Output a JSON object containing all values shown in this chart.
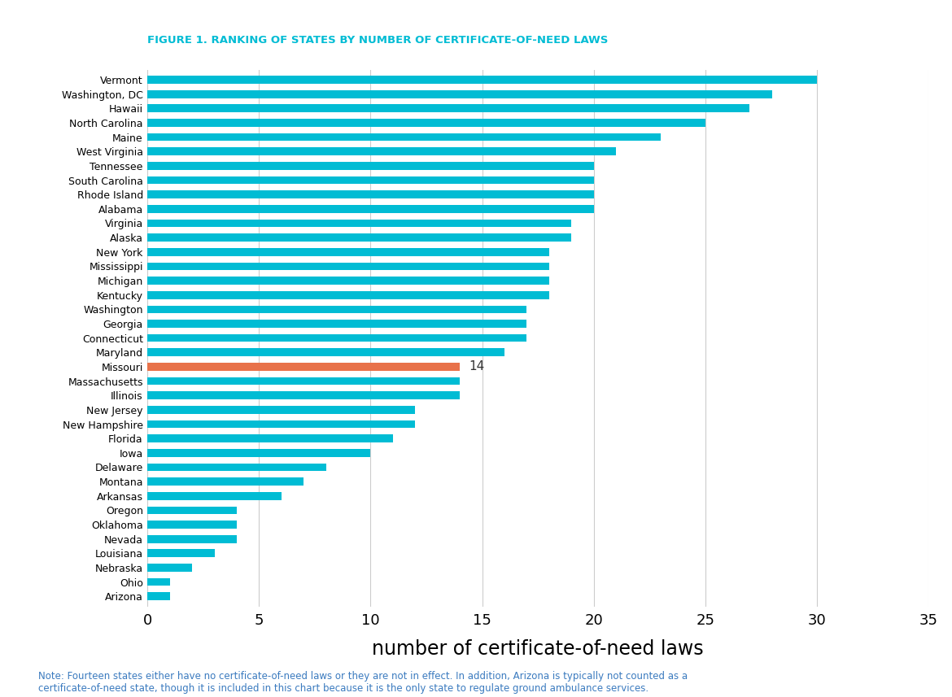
{
  "title": "FIGURE 1. RANKING OF STATES BY NUMBER OF CERTIFICATE-OF-NEED LAWS",
  "xlabel": "number of certificate-of-need laws",
  "note": "Note: Fourteen states either have no certificate-of-need laws or they are not in effect. In addition, Arizona is typically not counted as a\ncertificate-of-need state, though it is included in this chart because it is the only state to regulate ground ambulance services.",
  "states": [
    "Vermont",
    "Washington, DC",
    "Hawaii",
    "North Carolina",
    "Maine",
    "West Virginia",
    "Tennessee",
    "South Carolina",
    "Rhode Island",
    "Alabama",
    "Virginia",
    "Alaska",
    "New York",
    "Mississippi",
    "Michigan",
    "Kentucky",
    "Washington",
    "Georgia",
    "Connecticut",
    "Maryland",
    "Missouri",
    "Massachusetts",
    "Illinois",
    "New Jersey",
    "New Hampshire",
    "Florida",
    "Iowa",
    "Delaware",
    "Montana",
    "Arkansas",
    "Oregon",
    "Oklahoma",
    "Nevada",
    "Louisiana",
    "Nebraska",
    "Ohio",
    "Arizona"
  ],
  "values": [
    30,
    28,
    27,
    25,
    23,
    21,
    20,
    20,
    20,
    20,
    19,
    19,
    18,
    18,
    18,
    18,
    17,
    17,
    17,
    16,
    14,
    14,
    14,
    12,
    12,
    11,
    10,
    8,
    7,
    6,
    4,
    4,
    4,
    3,
    2,
    1,
    1
  ],
  "bar_color_default": "#00BCD4",
  "bar_color_highlight": "#E8724A",
  "highlight_state": "Missouri",
  "highlight_label": "14",
  "xlim": [
    0,
    35
  ],
  "xticks": [
    0,
    5,
    10,
    15,
    20,
    25,
    30,
    35
  ],
  "title_color": "#00BCD4",
  "note_color": "#3a7abf",
  "background_color": "#ffffff",
  "grid_color": "#cccccc"
}
